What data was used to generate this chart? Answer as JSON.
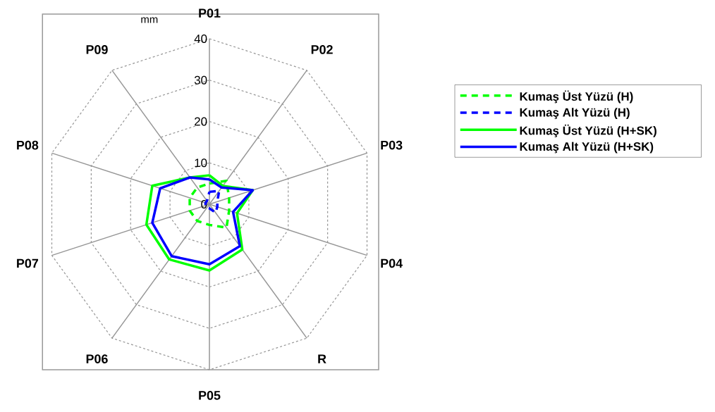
{
  "chart_data": {
    "type": "radar",
    "ylabel": "mm",
    "categories": [
      "P01",
      "P02",
      "P03",
      "P04",
      "R",
      "P05",
      "P06",
      "P07",
      "P08",
      "P09"
    ],
    "ylim": [
      0,
      40
    ],
    "yticks": [
      0,
      10,
      20,
      30,
      40
    ],
    "grid": true,
    "legend": "right",
    "series": [
      {
        "name": "Kumaş Üst Yüzü (H)",
        "color": "#00ff00",
        "line_style": "dashed",
        "values": [
          5,
          7,
          5,
          5,
          7,
          5,
          5,
          5,
          5,
          5
        ]
      },
      {
        "name": "Kumaş Alt Yüzü (H)",
        "color": "#0000ff",
        "line_style": "dashed",
        "values": [
          3,
          4,
          2,
          2,
          2.5,
          1,
          1,
          1,
          1,
          1
        ]
      },
      {
        "name": "Kumaş Üst Yüzü (H+SK)",
        "color": "#00ff00",
        "line_style": "solid",
        "values": [
          7,
          5.5,
          11,
          7,
          13.5,
          16,
          16.5,
          16,
          14.5,
          8
        ]
      },
      {
        "name": "Kumaş Alt Yüzü (H+SK)",
        "color": "#0000ff",
        "line_style": "solid",
        "values": [
          6,
          5,
          11,
          6,
          12.5,
          14.5,
          15.5,
          14.5,
          12.5,
          8
        ]
      }
    ]
  }
}
